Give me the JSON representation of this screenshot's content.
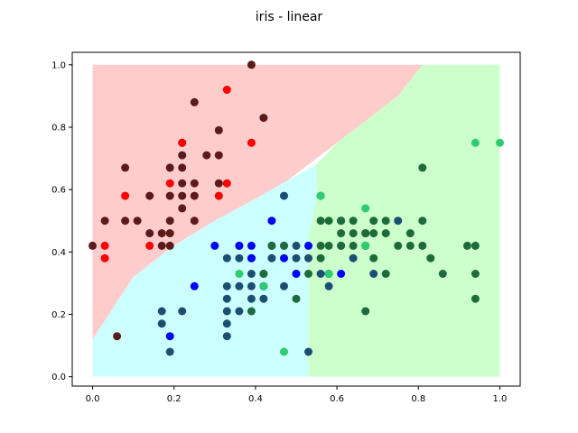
{
  "chart_data": {
    "type": "scatter",
    "title": "iris - linear",
    "xlabel": "",
    "ylabel": "",
    "xlim": [
      -0.05,
      1.05
    ],
    "ylim": [
      -0.03,
      1.04
    ],
    "x_ticks": [
      "0.0",
      "0.2",
      "0.4",
      "0.6",
      "0.8",
      "1.0"
    ],
    "y_ticks": [
      "0.0",
      "0.2",
      "0.4",
      "0.6",
      "0.8",
      "1.0"
    ],
    "grid": false,
    "legend": "none",
    "decision_regions": [
      {
        "class": 0,
        "color": "#ffcccc",
        "polygon": [
          [
            0.0,
            1.0
          ],
          [
            0.81,
            1.0
          ],
          [
            0.75,
            0.9
          ],
          [
            0.6,
            0.75
          ],
          [
            0.48,
            0.63
          ],
          [
            0.4,
            0.57
          ],
          [
            0.3,
            0.5
          ],
          [
            0.2,
            0.42
          ],
          [
            0.1,
            0.32
          ],
          [
            0.05,
            0.22
          ],
          [
            0.0,
            0.12
          ]
        ]
      },
      {
        "class": 1,
        "color": "#ccffff",
        "polygon": [
          [
            0.0,
            0.12
          ],
          [
            0.05,
            0.22
          ],
          [
            0.1,
            0.32
          ],
          [
            0.2,
            0.42
          ],
          [
            0.3,
            0.5
          ],
          [
            0.4,
            0.57
          ],
          [
            0.48,
            0.63
          ],
          [
            0.55,
            0.68
          ],
          [
            0.55,
            0.57
          ],
          [
            0.53,
            0.45
          ],
          [
            0.53,
            0.0
          ],
          [
            0.0,
            0.0
          ]
        ]
      },
      {
        "class": 2,
        "color": "#ccffcc",
        "polygon": [
          [
            0.81,
            1.0
          ],
          [
            1.0,
            1.0
          ],
          [
            1.0,
            0.0
          ],
          [
            0.53,
            0.0
          ],
          [
            0.53,
            0.45
          ],
          [
            0.55,
            0.57
          ],
          [
            0.55,
            0.68
          ],
          [
            0.6,
            0.75
          ],
          [
            0.75,
            0.9
          ]
        ]
      }
    ],
    "series": [
      {
        "marker_color": "#5c1a1a",
        "points": [
          [
            0.0,
            0.42
          ],
          [
            0.03,
            0.5
          ],
          [
            0.06,
            0.13
          ],
          [
            0.08,
            0.5
          ],
          [
            0.08,
            0.67
          ],
          [
            0.11,
            0.5
          ],
          [
            0.14,
            0.58
          ],
          [
            0.14,
            0.46
          ],
          [
            0.17,
            0.42
          ],
          [
            0.17,
            0.46
          ],
          [
            0.19,
            0.42
          ],
          [
            0.19,
            0.5
          ],
          [
            0.19,
            0.58
          ],
          [
            0.19,
            0.67
          ],
          [
            0.22,
            0.54
          ],
          [
            0.22,
            0.58
          ],
          [
            0.22,
            0.62
          ],
          [
            0.22,
            0.67
          ],
          [
            0.22,
            0.71
          ],
          [
            0.22,
            0.75
          ],
          [
            0.25,
            0.58
          ],
          [
            0.25,
            0.62
          ],
          [
            0.25,
            0.88
          ],
          [
            0.28,
            0.71
          ],
          [
            0.31,
            0.71
          ],
          [
            0.31,
            0.79
          ],
          [
            0.31,
            0.62
          ],
          [
            0.39,
            1.0
          ],
          [
            0.42,
            0.83
          ],
          [
            0.19,
            0.46
          ],
          [
            0.25,
            0.5
          ]
        ]
      },
      {
        "marker_color": "#ff0000",
        "points": [
          [
            0.03,
            0.42
          ],
          [
            0.03,
            0.38
          ],
          [
            0.14,
            0.42
          ],
          [
            0.08,
            0.58
          ],
          [
            0.19,
            0.62
          ],
          [
            0.22,
            0.75
          ],
          [
            0.31,
            0.58
          ],
          [
            0.33,
            0.62
          ],
          [
            0.33,
            0.92
          ],
          [
            0.39,
            0.75
          ]
        ]
      },
      {
        "marker_color": "#1b4f72",
        "points": [
          [
            0.17,
            0.21
          ],
          [
            0.17,
            0.17
          ],
          [
            0.19,
            0.08
          ],
          [
            0.22,
            0.21
          ],
          [
            0.33,
            0.13
          ],
          [
            0.33,
            0.17
          ],
          [
            0.33,
            0.21
          ],
          [
            0.33,
            0.25
          ],
          [
            0.33,
            0.29
          ],
          [
            0.33,
            0.38
          ],
          [
            0.36,
            0.21
          ],
          [
            0.36,
            0.29
          ],
          [
            0.36,
            0.38
          ],
          [
            0.36,
            0.42
          ],
          [
            0.39,
            0.25
          ],
          [
            0.39,
            0.29
          ],
          [
            0.39,
            0.33
          ],
          [
            0.39,
            0.38
          ],
          [
            0.42,
            0.29
          ],
          [
            0.42,
            0.25
          ],
          [
            0.42,
            0.33
          ],
          [
            0.44,
            0.42
          ],
          [
            0.44,
            0.38
          ],
          [
            0.47,
            0.29
          ],
          [
            0.47,
            0.42
          ],
          [
            0.47,
            0.58
          ],
          [
            0.5,
            0.38
          ],
          [
            0.5,
            0.42
          ],
          [
            0.5,
            0.33
          ],
          [
            0.53,
            0.38
          ],
          [
            0.53,
            0.08
          ],
          [
            0.56,
            0.33
          ],
          [
            0.56,
            0.58
          ],
          [
            0.58,
            0.29
          ],
          [
            0.58,
            0.33
          ],
          [
            0.61,
            0.42
          ],
          [
            0.64,
            0.38
          ],
          [
            0.67,
            0.46
          ],
          [
            0.67,
            0.42
          ],
          [
            0.69,
            0.33
          ],
          [
            0.75,
            0.5
          ]
        ]
      },
      {
        "marker_color": "#0000ff",
        "points": [
          [
            0.19,
            0.13
          ],
          [
            0.25,
            0.29
          ],
          [
            0.3,
            0.42
          ],
          [
            0.36,
            0.42
          ],
          [
            0.39,
            0.42
          ],
          [
            0.39,
            0.38
          ],
          [
            0.42,
            0.29
          ],
          [
            0.44,
            0.5
          ],
          [
            0.47,
            0.38
          ],
          [
            0.5,
            0.33
          ],
          [
            0.53,
            0.42
          ],
          [
            0.61,
            0.33
          ],
          [
            0.61,
            0.5
          ]
        ]
      },
      {
        "marker_color": "#1d6b3a",
        "points": [
          [
            0.39,
            0.21
          ],
          [
            0.42,
            0.33
          ],
          [
            0.44,
            0.42
          ],
          [
            0.47,
            0.42
          ],
          [
            0.5,
            0.25
          ],
          [
            0.53,
            0.33
          ],
          [
            0.56,
            0.5
          ],
          [
            0.56,
            0.42
          ],
          [
            0.56,
            0.38
          ],
          [
            0.58,
            0.5
          ],
          [
            0.58,
            0.42
          ],
          [
            0.58,
            0.33
          ],
          [
            0.61,
            0.46
          ],
          [
            0.61,
            0.5
          ],
          [
            0.61,
            0.42
          ],
          [
            0.64,
            0.42
          ],
          [
            0.64,
            0.46
          ],
          [
            0.64,
            0.5
          ],
          [
            0.67,
            0.21
          ],
          [
            0.67,
            0.42
          ],
          [
            0.67,
            0.46
          ],
          [
            0.69,
            0.38
          ],
          [
            0.69,
            0.46
          ],
          [
            0.69,
            0.5
          ],
          [
            0.72,
            0.46
          ],
          [
            0.72,
            0.5
          ],
          [
            0.75,
            0.42
          ],
          [
            0.78,
            0.42
          ],
          [
            0.81,
            0.5
          ],
          [
            0.81,
            0.42
          ],
          [
            0.81,
            0.67
          ],
          [
            0.83,
            0.38
          ],
          [
            0.86,
            0.33
          ],
          [
            0.92,
            0.42
          ],
          [
            0.94,
            0.42
          ],
          [
            0.94,
            0.33
          ],
          [
            0.94,
            0.25
          ],
          [
            0.78,
            0.46
          ],
          [
            0.72,
            0.33
          ]
        ]
      },
      {
        "marker_color": "#2ecc71",
        "points": [
          [
            0.36,
            0.33
          ],
          [
            0.42,
            0.29
          ],
          [
            0.47,
            0.08
          ],
          [
            0.56,
            0.58
          ],
          [
            0.58,
            0.33
          ],
          [
            0.67,
            0.54
          ],
          [
            0.67,
            0.42
          ],
          [
            0.94,
            0.75
          ],
          [
            1.0,
            0.75
          ]
        ]
      }
    ]
  }
}
